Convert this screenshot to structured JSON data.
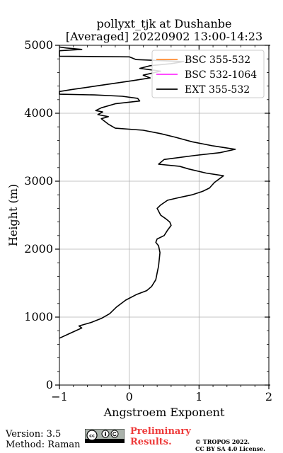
{
  "chart_data": {
    "type": "line",
    "title_line1": "pollyxt_tjk at Dushanbe",
    "title_line2": "[Averaged] 20220902 13:00-14:23",
    "xlabel": "Angstroem Exponent",
    "ylabel": "Height (m)",
    "xlim": [
      -1,
      2
    ],
    "ylim": [
      0,
      5000
    ],
    "x_ticks": [
      "−1",
      "0",
      "1",
      "2"
    ],
    "y_ticks": [
      "0",
      "1000",
      "2000",
      "3000",
      "4000",
      "5000"
    ],
    "grid": true,
    "legend_position": "top-right",
    "series": [
      {
        "name": "BSC 355-532",
        "color": "#ff8c33",
        "points": []
      },
      {
        "name": "BSC 532-1064",
        "color": "#ff33ff",
        "points": []
      },
      {
        "name": "EXT 355-532",
        "color": "#000000",
        "points": [
          [
            -1.0,
            690
          ],
          [
            -0.85,
            760
          ],
          [
            -0.68,
            840
          ],
          [
            -0.72,
            870
          ],
          [
            -0.55,
            920
          ],
          [
            -0.4,
            980
          ],
          [
            -0.28,
            1050
          ],
          [
            -0.18,
            1150
          ],
          [
            -0.05,
            1250
          ],
          [
            0.1,
            1330
          ],
          [
            0.25,
            1390
          ],
          [
            0.32,
            1450
          ],
          [
            0.38,
            1550
          ],
          [
            0.4,
            1650
          ],
          [
            0.42,
            1750
          ],
          [
            0.43,
            1850
          ],
          [
            0.44,
            1950
          ],
          [
            0.42,
            2050
          ],
          [
            0.38,
            2100
          ],
          [
            0.4,
            2150
          ],
          [
            0.5,
            2200
          ],
          [
            0.55,
            2280
          ],
          [
            0.6,
            2350
          ],
          [
            0.58,
            2400
          ],
          [
            0.52,
            2450
          ],
          [
            0.45,
            2500
          ],
          [
            0.4,
            2600
          ],
          [
            0.45,
            2650
          ],
          [
            0.55,
            2720
          ],
          [
            0.72,
            2760
          ],
          [
            0.9,
            2800
          ],
          [
            1.05,
            2850
          ],
          [
            1.15,
            2900
          ],
          [
            1.22,
            2980
          ],
          [
            1.35,
            3080
          ],
          [
            1.1,
            3120
          ],
          [
            0.85,
            3180
          ],
          [
            0.72,
            3220
          ],
          [
            0.42,
            3250
          ],
          [
            0.5,
            3320
          ],
          [
            0.95,
            3380
          ],
          [
            1.3,
            3420
          ],
          [
            1.52,
            3470
          ],
          [
            1.2,
            3520
          ],
          [
            0.9,
            3580
          ],
          [
            0.65,
            3650
          ],
          [
            0.45,
            3700
          ],
          [
            0.2,
            3750
          ],
          [
            -0.2,
            3780
          ],
          [
            -0.3,
            3840
          ],
          [
            -0.4,
            3920
          ],
          [
            -0.3,
            3950
          ],
          [
            -0.45,
            3980
          ],
          [
            -0.38,
            4020
          ],
          [
            -0.48,
            4040
          ],
          [
            -0.4,
            4080
          ],
          [
            -0.2,
            4140
          ],
          [
            0.15,
            4180
          ],
          [
            0.12,
            4220
          ],
          [
            -0.1,
            4250
          ],
          [
            -0.5,
            4270
          ],
          [
            -1.0,
            4280
          ],
          [
            -1.0,
            4320
          ],
          [
            -0.82,
            4350
          ],
          [
            -0.55,
            4390
          ],
          [
            -0.35,
            4420
          ],
          [
            -0.15,
            4450
          ],
          [
            0.05,
            4480
          ],
          [
            0.3,
            4520
          ],
          [
            0.2,
            4560
          ],
          [
            0.45,
            4620
          ],
          [
            0.15,
            4660
          ],
          [
            0.3,
            4700
          ],
          [
            0.6,
            4730
          ],
          [
            0.78,
            4760
          ],
          [
            0.1,
            4790
          ],
          [
            0.0,
            4830
          ],
          [
            -1.0,
            4840
          ],
          [
            -1.0,
            4920
          ],
          [
            -0.68,
            4940
          ],
          [
            -0.9,
            4960
          ],
          [
            -1.0,
            4975
          ]
        ]
      }
    ]
  },
  "footer": {
    "version": "Version: 3.5",
    "method": "Method: Raman",
    "preliminary_line1": "Preliminary",
    "preliminary_line2": "Results.",
    "copyright_line1": "© TROPOS 2022.",
    "copyright_line2": "CC BY SA 4.0 License.",
    "badge_icons": [
      "cc-icon",
      "by-icon",
      "sa-icon"
    ]
  }
}
